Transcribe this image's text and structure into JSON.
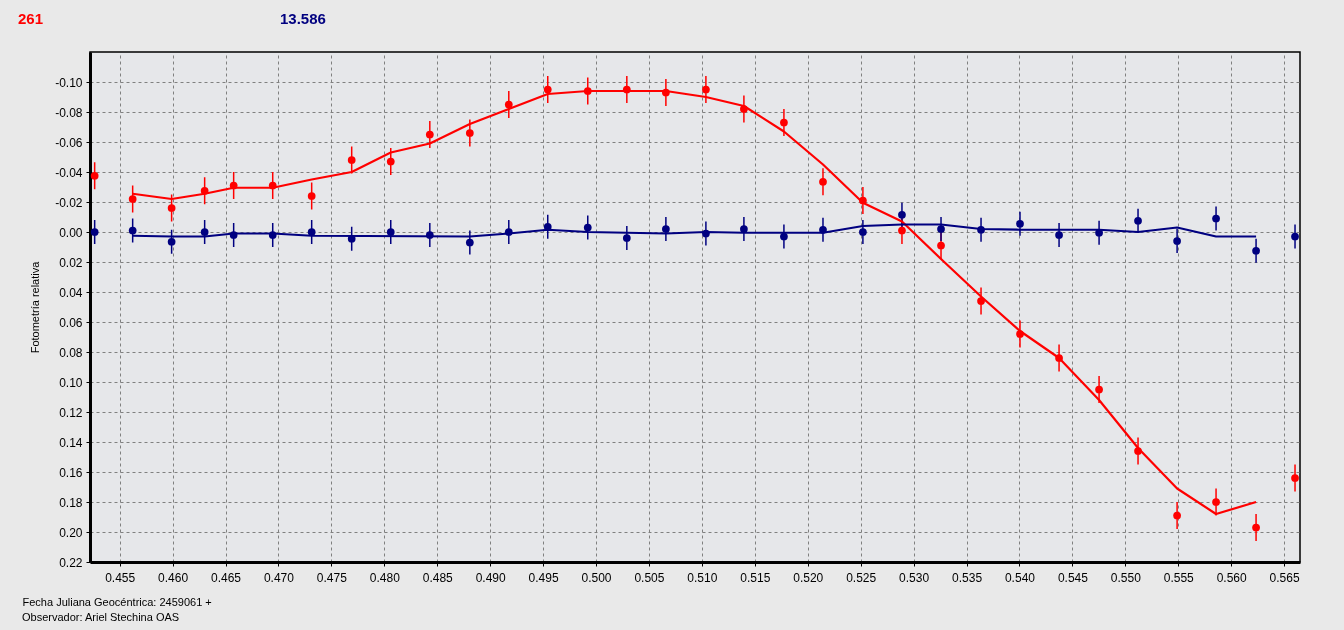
{
  "chart_data": {
    "type": "scatter",
    "xlabel": "Fecha Juliana Geocéntrica: 2459061 +",
    "ylabel": "Fotometría relativa",
    "annotations": [
      "Observador: Ariel Stechina OAS"
    ],
    "xlim": [
      0.4522,
      0.5665
    ],
    "ylim": [
      0.22,
      -0.12
    ],
    "xticks": [
      {
        "value": 0.455,
        "label": "0.455"
      },
      {
        "value": 0.46,
        "label": "0.460"
      },
      {
        "value": 0.465,
        "label": "0.465"
      },
      {
        "value": 0.47,
        "label": "0.470"
      },
      {
        "value": 0.475,
        "label": "0.475"
      },
      {
        "value": 0.48,
        "label": "0.480"
      },
      {
        "value": 0.485,
        "label": "0.485"
      },
      {
        "value": 0.49,
        "label": "0.490"
      },
      {
        "value": 0.495,
        "label": "0.495"
      },
      {
        "value": 0.5,
        "label": "0.500"
      },
      {
        "value": 0.505,
        "label": "0.505"
      },
      {
        "value": 0.51,
        "label": "0.510"
      },
      {
        "value": 0.515,
        "label": "0.515"
      },
      {
        "value": 0.52,
        "label": "0.520"
      },
      {
        "value": 0.525,
        "label": "0.525"
      },
      {
        "value": 0.53,
        "label": "0.530"
      },
      {
        "value": 0.535,
        "label": "0.535"
      },
      {
        "value": 0.54,
        "label": "0.540"
      },
      {
        "value": 0.545,
        "label": "0.545"
      },
      {
        "value": 0.55,
        "label": "0.550"
      },
      {
        "value": 0.555,
        "label": "0.555"
      },
      {
        "value": 0.56,
        "label": "0.560"
      },
      {
        "value": 0.565,
        "label": "0.565"
      }
    ],
    "yticks": [
      {
        "value": -0.1,
        "label": "-0.10"
      },
      {
        "value": -0.08,
        "label": "-0.08"
      },
      {
        "value": -0.06,
        "label": "-0.06"
      },
      {
        "value": -0.04,
        "label": "-0.04"
      },
      {
        "value": -0.02,
        "label": "-0.02"
      },
      {
        "value": 0,
        "label": "0.00"
      },
      {
        "value": 0.02,
        "label": "0.02"
      },
      {
        "value": 0.04,
        "label": "0.04"
      },
      {
        "value": 0.06,
        "label": "0.06"
      },
      {
        "value": 0.08,
        "label": "0.08"
      },
      {
        "value": 0.1,
        "label": "0.10"
      },
      {
        "value": 0.12,
        "label": "0.12"
      },
      {
        "value": 0.14,
        "label": "0.14"
      },
      {
        "value": 0.16,
        "label": "0.16"
      },
      {
        "value": 0.18,
        "label": "0.18"
      },
      {
        "value": 0.2,
        "label": "0.20"
      },
      {
        "value": 0.22,
        "label": "0.22"
      }
    ],
    "grid": true,
    "marker": "circle",
    "line_style": "solid",
    "series": [
      {
        "name": "261",
        "color": "#ff0000",
        "x": [
          0.45264,
          0.45623,
          0.45991,
          0.46303,
          0.46577,
          0.46946,
          0.47314,
          0.47692,
          0.48061,
          0.4843,
          0.48808,
          0.49176,
          0.49544,
          0.49922,
          0.50291,
          0.5066,
          0.51038,
          0.51397,
          0.51775,
          0.52144,
          0.52521,
          0.5289,
          0.53259,
          0.53637,
          0.54005,
          0.54374,
          0.54752,
          0.5512,
          0.55489,
          0.55857,
          0.56235,
          0.56603
        ],
        "values": [
          -0.0375,
          -0.022,
          -0.016,
          -0.0275,
          -0.031,
          -0.031,
          -0.024,
          -0.048,
          -0.047,
          -0.065,
          -0.066,
          -0.085,
          -0.095,
          -0.094,
          -0.095,
          -0.093,
          -0.095,
          -0.082,
          -0.073,
          -0.0335,
          -0.021,
          -0.001,
          0.009,
          0.046,
          0.068,
          0.084,
          0.105,
          0.146,
          0.189,
          0.18,
          0.197,
          0.164
        ],
        "errors": [
          0.009,
          0.009,
          0.009,
          0.009,
          0.009,
          0.009,
          0.009,
          0.009,
          0.009,
          0.009,
          0.009,
          0.009,
          0.009,
          0.009,
          0.009,
          0.009,
          0.009,
          0.009,
          0.009,
          0.009,
          0.009,
          0.009,
          0.009,
          0.009,
          0.009,
          0.009,
          0.009,
          0.009,
          0.009,
          0.009,
          0.009,
          0.009
        ]
      },
      {
        "name": "13.586",
        "color": "#000080",
        "x": [
          0.45264,
          0.45623,
          0.45991,
          0.46303,
          0.46577,
          0.46946,
          0.47314,
          0.47692,
          0.48061,
          0.4843,
          0.48808,
          0.49176,
          0.49544,
          0.49922,
          0.50291,
          0.5066,
          0.51038,
          0.51397,
          0.51775,
          0.52144,
          0.52521,
          0.5289,
          0.53259,
          0.53637,
          0.54005,
          0.54374,
          0.54752,
          0.5512,
          0.55489,
          0.55857,
          0.56235,
          0.56603
        ],
        "values": [
          0,
          -0.001,
          0.0065,
          0,
          0.002,
          0.002,
          0,
          0.0045,
          0,
          0.002,
          0.007,
          0,
          -0.0035,
          -0.003,
          0.004,
          -0.002,
          0.001,
          -0.002,
          0.003,
          -0.0015,
          0,
          -0.0115,
          -0.002,
          -0.0015,
          -0.0055,
          0.002,
          0.0005,
          -0.0075,
          0.006,
          -0.009,
          0.0125,
          0.003
        ],
        "errors": [
          0.008,
          0.008,
          0.008,
          0.008,
          0.008,
          0.008,
          0.008,
          0.008,
          0.008,
          0.008,
          0.008,
          0.008,
          0.008,
          0.008,
          0.008,
          0.008,
          0.008,
          0.008,
          0.008,
          0.008,
          0.008,
          0.008,
          0.008,
          0.008,
          0.008,
          0.008,
          0.008,
          0.008,
          0.008,
          0.008,
          0.008,
          0.008
        ]
      },
      {
        "color": "#ff0000",
        "type": "line",
        "marker": "none",
        "x": [
          0.45623,
          0.45991,
          0.46303,
          0.46577,
          0.46946,
          0.47314,
          0.47692,
          0.48061,
          0.4843,
          0.48808,
          0.49176,
          0.49544,
          0.49922,
          0.5066,
          0.51038,
          0.51397,
          0.51775,
          0.52144,
          0.52521,
          0.5289,
          0.53259,
          0.53637,
          0.54005,
          0.54374,
          0.54752,
          0.5512,
          0.55489,
          0.55857,
          0.56235
        ],
        "values": [
          -0.0255,
          -0.022,
          -0.0255,
          -0.0295,
          -0.0295,
          -0.035,
          -0.04,
          -0.053,
          -0.059,
          -0.072,
          -0.082,
          -0.092,
          -0.094,
          -0.094,
          -0.09,
          -0.084,
          -0.067,
          -0.045,
          -0.0195,
          -0.007,
          0.018,
          0.043,
          0.066,
          0.084,
          0.112,
          0.144,
          0.171,
          0.188,
          0.18
        ]
      },
      {
        "color": "#000080",
        "type": "line",
        "marker": "none",
        "x": [
          0.45623,
          0.45991,
          0.46303,
          0.46577,
          0.46946,
          0.47314,
          0.48808,
          0.49176,
          0.49544,
          0.49922,
          0.50291,
          0.5066,
          0.51038,
          0.51397,
          0.51775,
          0.52144,
          0.52521,
          0.5289,
          0.53259,
          0.53637,
          0.54005,
          0.54374,
          0.54752,
          0.5512,
          0.55489,
          0.55857,
          0.56235
        ],
        "values": [
          0.0025,
          0.003,
          0.003,
          0.001,
          0.001,
          0.0025,
          0.003,
          0.001,
          -0.0015,
          0,
          0.0005,
          0.001,
          0,
          0.0005,
          0.0005,
          0.0005,
          -0.004,
          -0.005,
          -0.005,
          -0.002,
          -0.0015,
          -0.0015,
          -0.0015,
          0,
          -0.003,
          0.003,
          0.003
        ]
      }
    ]
  }
}
